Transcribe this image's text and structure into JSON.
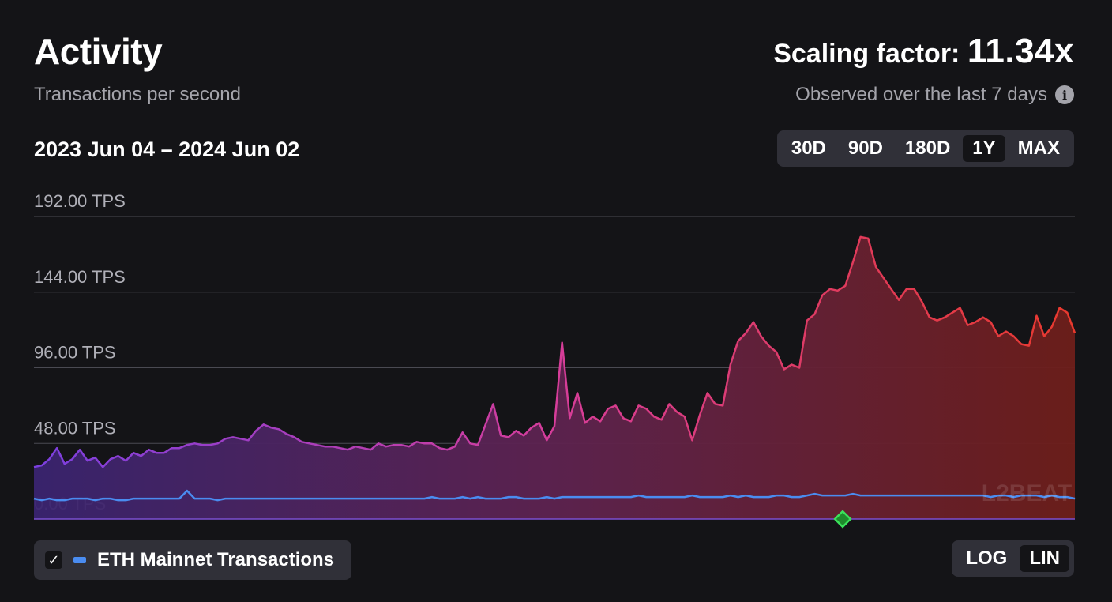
{
  "header": {
    "title": "Activity",
    "subtitle": "Transactions per second",
    "scaling_label": "Scaling factor:",
    "scaling_value": "11.34x",
    "observed": "Observed over the last 7 days",
    "info_icon": "info-icon"
  },
  "range_label": "2023 Jun 04 – 2024 Jun 02",
  "period_buttons": [
    "30D",
    "90D",
    "180D",
    "1Y",
    "MAX"
  ],
  "period_selected": "1Y",
  "scale_buttons": [
    "LOG",
    "LIN"
  ],
  "scale_selected": "LIN",
  "legend": {
    "checked": true,
    "label": "ETH Mainnet Transactions",
    "color": "#4a8cf0"
  },
  "watermark": "L2BEAT",
  "colors": {
    "background": "#141417",
    "gradient": [
      "#7b3fe0",
      "#d63d9a",
      "#e8392d"
    ],
    "eth_line": "#4a8cf0",
    "marker": "#3ae15a"
  },
  "chart_data": {
    "type": "area",
    "x_range": [
      "2023 Jun 04",
      "2024 Jun 02"
    ],
    "ylim": [
      0,
      192
    ],
    "y_ticks": [
      "192.00 TPS",
      "144.00 TPS",
      "96.00 TPS",
      "48.00 TPS",
      "0.00 TPS"
    ],
    "grid": true,
    "series": [
      {
        "name": "",
        "values": [
          33,
          34,
          38,
          45,
          35,
          38,
          44,
          37,
          39,
          33,
          38,
          40,
          37,
          42,
          40,
          44,
          42,
          42,
          45,
          45,
          47,
          48,
          47,
          47,
          48,
          51,
          52,
          51,
          50,
          56,
          60,
          58,
          57,
          54,
          52,
          49,
          48,
          47,
          46,
          46,
          45,
          44,
          46,
          45,
          44,
          48,
          46,
          47,
          47,
          46,
          49,
          48,
          48,
          45,
          44,
          46,
          55,
          48,
          47,
          60,
          73,
          53,
          52,
          56,
          53,
          58,
          61,
          50,
          59,
          112,
          64,
          80,
          61,
          65,
          62,
          70,
          72,
          64,
          62,
          72,
          70,
          65,
          63,
          73,
          68,
          65,
          50,
          66,
          80,
          73,
          72,
          98,
          113,
          118,
          125,
          116,
          110,
          106,
          95,
          98,
          96,
          126,
          130,
          142,
          146,
          145,
          148,
          163,
          179,
          178,
          160,
          153,
          146,
          139,
          146,
          146,
          138,
          128,
          126,
          128,
          131,
          134,
          123,
          125,
          128,
          125,
          116,
          119,
          116,
          111,
          110,
          129,
          116,
          122,
          134,
          131,
          118
        ]
      },
      {
        "name": "ETH Mainnet Transactions",
        "values": [
          13,
          12,
          13,
          12,
          12,
          13,
          13,
          13,
          12,
          13,
          13,
          12,
          12,
          13,
          13,
          13,
          13,
          13,
          13,
          13,
          18,
          13,
          13,
          13,
          12,
          13,
          13,
          13,
          13,
          13,
          13,
          13,
          13,
          13,
          13,
          13,
          13,
          13,
          13,
          13,
          13,
          13,
          13,
          13,
          13,
          13,
          13,
          13,
          13,
          13,
          13,
          13,
          14,
          13,
          13,
          13,
          14,
          13,
          14,
          13,
          13,
          13,
          14,
          14,
          13,
          13,
          13,
          14,
          13,
          14,
          14,
          14,
          14,
          14,
          14,
          14,
          14,
          14,
          14,
          15,
          14,
          14,
          14,
          14,
          14,
          14,
          15,
          14,
          14,
          14,
          14,
          15,
          14,
          15,
          14,
          14,
          14,
          15,
          15,
          14,
          14,
          15,
          16,
          15,
          15,
          15,
          15,
          16,
          15,
          15,
          15,
          15,
          15,
          15,
          15,
          15,
          15,
          15,
          15,
          15,
          15,
          15,
          15,
          15,
          15,
          14,
          15,
          15,
          14,
          15,
          15,
          15,
          14,
          15,
          14,
          14,
          13
        ]
      }
    ]
  }
}
